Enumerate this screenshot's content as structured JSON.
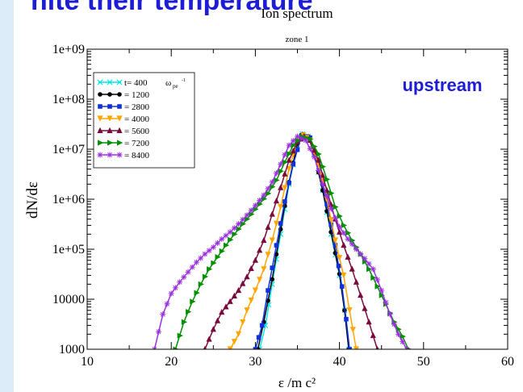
{
  "page": {
    "slide_title": "nite their temperature"
  },
  "chart_data": {
    "type": "line",
    "title": "Ion spectrum",
    "subtitle": "zone 1",
    "xlabel": "ε /m c²",
    "ylabel": "dN/dε",
    "xlim": [
      10,
      60
    ],
    "ylim": [
      1000,
      1000000000
    ],
    "yscale": "log",
    "x_ticks": [
      10,
      20,
      30,
      40,
      50,
      60
    ],
    "x_tick_labels": [
      "10",
      "20",
      "30",
      "40",
      "50",
      "60"
    ],
    "y_ticks": [
      1000,
      10000,
      100000,
      1000000,
      10000000,
      100000000,
      1000000000
    ],
    "y_tick_labels": [
      "1000",
      "10000",
      "1e+05",
      "1e+06",
      "1e+07",
      "1e+08",
      "1e+09"
    ],
    "annotation": "upstream",
    "legend_position": "top-left",
    "legend_unit": "ω",
    "legend_unit_sub": "pe",
    "legend_unit_sup": "-1",
    "series": [
      {
        "name": "t= 400",
        "color": "#00e5e5",
        "marker": "x",
        "x": [
          30.5,
          31.2,
          32,
          33,
          34,
          35,
          35.6,
          36.3,
          37,
          38,
          39,
          40,
          40.6,
          41.1
        ],
        "y": [
          1000,
          3000,
          20000,
          200000,
          2000000,
          12000000,
          20000000,
          18000000,
          8000000,
          1500000,
          200000,
          30000,
          6000,
          1000
        ]
      },
      {
        "name": "= 1200",
        "color": "#000000",
        "marker": "circle",
        "x": [
          30.3,
          31,
          32,
          33,
          34,
          35,
          35.6,
          36.3,
          37,
          38,
          39,
          40,
          40.6,
          41.1
        ],
        "y": [
          1000,
          3500,
          25000,
          250000,
          2200000,
          13000000,
          20000000,
          18000000,
          8000000,
          1500000,
          220000,
          32000,
          6000,
          1000
        ]
      },
      {
        "name": "= 2800",
        "color": "#1030e0",
        "marker": "square",
        "x": [
          30,
          30.8,
          31.5,
          32.5,
          33.5,
          34.5,
          35.5,
          36.5,
          37.5,
          38.5,
          39.5,
          40.3,
          40.8,
          41.2
        ],
        "y": [
          1000,
          3000,
          15000,
          120000,
          900000,
          5000000,
          19000000,
          17000000,
          5000000,
          800000,
          120000,
          18000,
          4000,
          1000
        ]
      },
      {
        "name": "= 4000",
        "color": "#ffa500",
        "marker": "triangle-down",
        "x": [
          27,
          28,
          29,
          30,
          31,
          32,
          33,
          34,
          35,
          35.7,
          36.5,
          37.5,
          38.5,
          39.5,
          40.5,
          41.2,
          42
        ],
        "y": [
          1000,
          2000,
          6000,
          15000,
          40000,
          150000,
          700000,
          4000000,
          15000000,
          19000000,
          15000000,
          5000000,
          1000000,
          150000,
          30000,
          6000,
          1000
        ]
      },
      {
        "name": "= 5600",
        "color": "#7a0a3c",
        "marker": "triangle-up",
        "x": [
          24,
          25,
          26,
          27,
          28,
          29,
          30,
          31,
          32,
          33,
          34,
          35,
          35.8,
          36.5,
          37.5,
          38.5,
          39.5,
          40.5,
          41.5,
          42.5,
          43.5,
          44.5
        ],
        "y": [
          1000,
          2500,
          5500,
          9000,
          15000,
          28000,
          60000,
          150000,
          500000,
          1700000,
          6000000,
          14000000,
          18000000,
          15000000,
          6000000,
          1500000,
          400000,
          120000,
          40000,
          12000,
          3500,
          1000
        ]
      },
      {
        "name": "= 7200",
        "color": "#009000",
        "marker": "triangle-right",
        "x": [
          20.5,
          21.5,
          22.5,
          23.5,
          24.5,
          25.5,
          26.5,
          27.5,
          28.5,
          29.5,
          30.5,
          31.5,
          32.5,
          33.5,
          34.5,
          35.5,
          36.5,
          37.5,
          38.5,
          39.5,
          40.5,
          41.5,
          42.5,
          43.5,
          44.5,
          45.5,
          46.5,
          47.5,
          48.2
        ],
        "y": [
          1000,
          3500,
          9000,
          20000,
          40000,
          70000,
          120000,
          200000,
          320000,
          500000,
          800000,
          1300000,
          2400000,
          5500000,
          12000000,
          18000000,
          16000000,
          8000000,
          2500000,
          700000,
          300000,
          150000,
          80000,
          40000,
          18000,
          8000,
          3500,
          1800,
          1000
        ]
      },
      {
        "name": "= 8400",
        "color": "#9a30e0",
        "marker": "star",
        "x": [
          18,
          19,
          20,
          21,
          22,
          23,
          24,
          25,
          26,
          27,
          28,
          29,
          30,
          31,
          32,
          33,
          34,
          35,
          36,
          37,
          38,
          39,
          40,
          41,
          42,
          43,
          44,
          45,
          46,
          47,
          48
        ],
        "y": [
          1000,
          5000,
          13000,
          22000,
          35000,
          55000,
          80000,
          110000,
          160000,
          220000,
          320000,
          480000,
          750000,
          1200000,
          2200000,
          5000000,
          12000000,
          18000000,
          15000000,
          7000000,
          2000000,
          650000,
          280000,
          160000,
          100000,
          65000,
          40000,
          15000,
          5000,
          2000,
          1000
        ]
      }
    ]
  }
}
